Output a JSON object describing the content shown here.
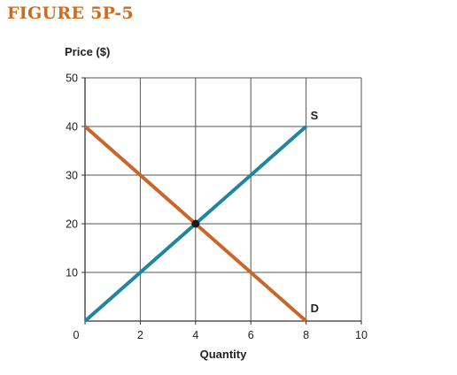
{
  "figure_title": "FIGURE 5P-5",
  "chart_data": {
    "type": "line",
    "title": "",
    "xlabel": "Quantity",
    "ylabel": "Price ($)",
    "xlim": [
      0,
      10
    ],
    "ylim": [
      0,
      50
    ],
    "xticks": [
      0,
      2,
      4,
      6,
      8,
      10
    ],
    "yticks": [
      10,
      20,
      30,
      40,
      50
    ],
    "grid": true,
    "series": [
      {
        "name": "S",
        "color": "#1f86a1",
        "x": [
          0,
          8
        ],
        "y": [
          0,
          40
        ]
      },
      {
        "name": "D",
        "color": "#c8662b",
        "x": [
          0,
          8
        ],
        "y": [
          40,
          0
        ]
      }
    ],
    "points": [
      {
        "x": 4,
        "y": 20,
        "color": "#1a1a1a"
      }
    ]
  }
}
